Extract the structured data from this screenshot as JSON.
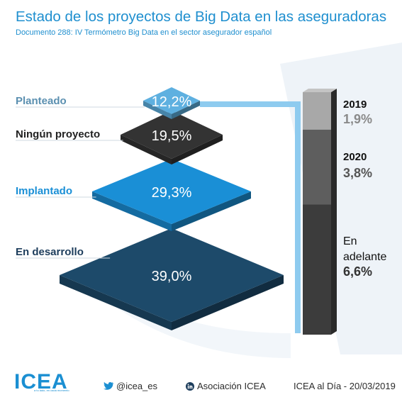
{
  "header": {
    "title": "Estado de los proyectos de Big Data en las aseguradoras",
    "subtitle": "Documento 288: IV Termómetro Big Data en el sector asegurador español"
  },
  "chart_data": [
    {
      "type": "pyramid",
      "categories": [
        "Planteado",
        "Ningún proyecto",
        "Implantado",
        "En desarrollo"
      ],
      "values": [
        12.2,
        19.5,
        29.3,
        39.0
      ],
      "value_labels": [
        "12,2%",
        "19,5%",
        "29,3%",
        "39,0%"
      ],
      "colors": [
        "#5eb0e0",
        "#333333",
        "#1a8fd6",
        "#1d4a6a"
      ],
      "label_colors": [
        "#5a8fb0",
        "#222222",
        "#1a8fd6",
        "#1d3d5c"
      ]
    },
    {
      "type": "stacked-bar",
      "categories": [
        "2019",
        "2020",
        "En adelante"
      ],
      "category_lines": [
        [
          "2019"
        ],
        [
          "2020"
        ],
        [
          "En",
          "adelante"
        ]
      ],
      "values": [
        1.9,
        3.8,
        6.6
      ],
      "value_labels": [
        "1,9%",
        "3,8%",
        "6,6%"
      ],
      "colors": [
        "#a8a8a8",
        "#5e5e5e",
        "#3c3c3c"
      ],
      "value_colors": [
        "#8a8a8a",
        "#555555",
        "#333333"
      ]
    }
  ],
  "footer": {
    "logo": "ICEA",
    "tagline": "a tu lado, en cada momento",
    "twitter": "@icea_es",
    "linkedin": "Asociación ICEA",
    "credit": "ICEA al Día - 20/03/2019",
    "twitter_icon": "twitter-bird-icon",
    "linkedin_icon": "linkedin-icon"
  }
}
